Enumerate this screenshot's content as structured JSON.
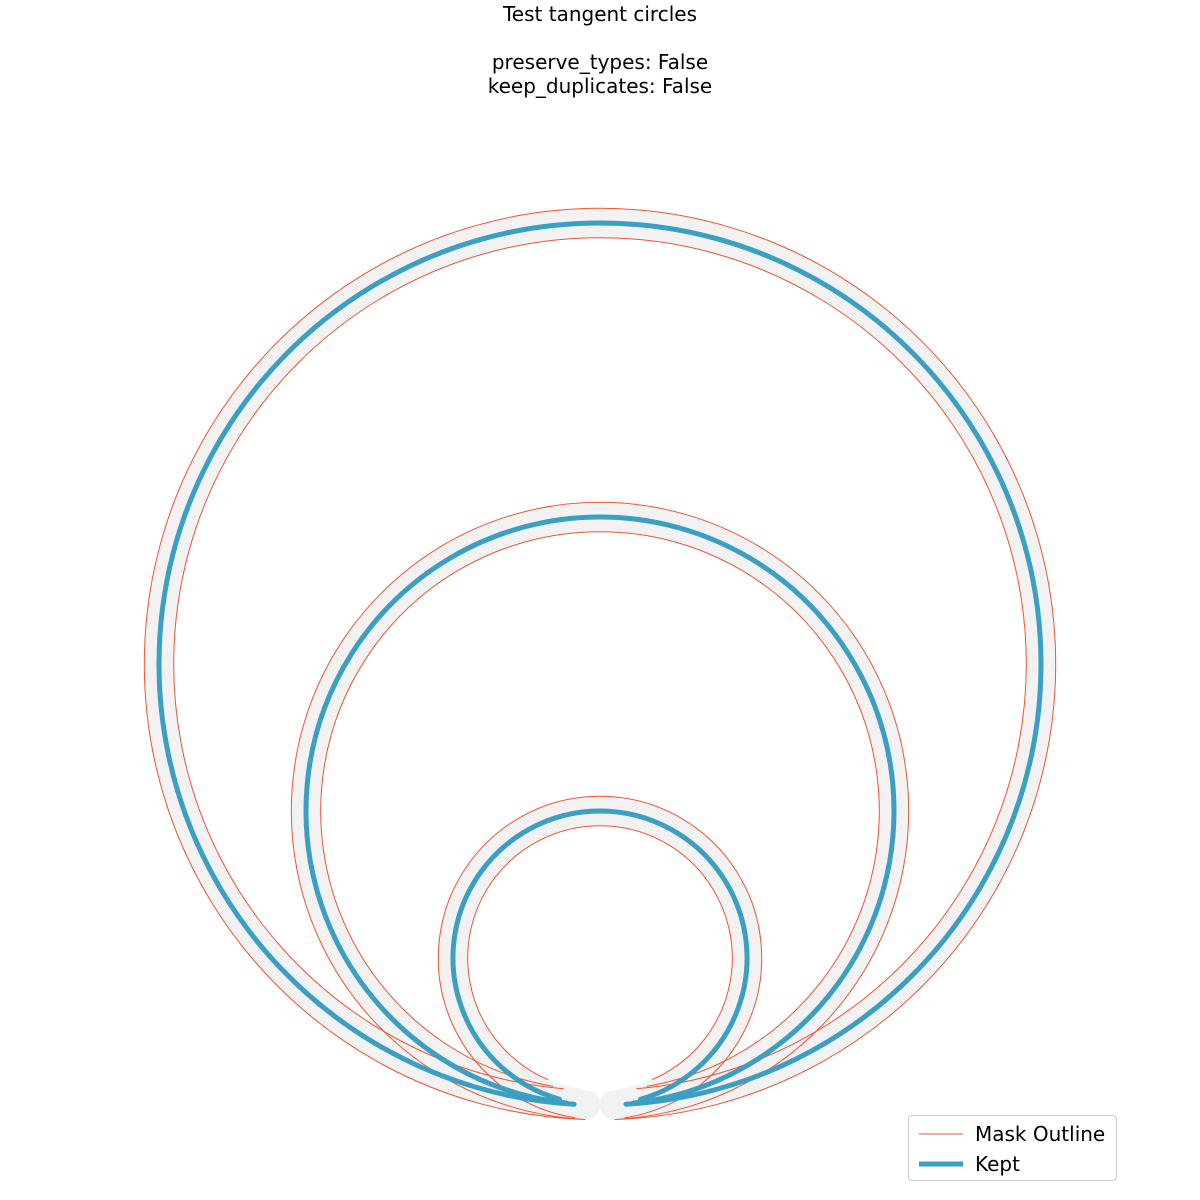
{
  "title": {
    "line1": "Test tangent circles",
    "line2": "preserve_types: False",
    "line3": "keep_duplicates: False"
  },
  "legend": {
    "mask_label": "Mask Outline",
    "kept_label": "Kept"
  },
  "colors": {
    "mask": "#ee5533",
    "kept": "#3a9fc2",
    "halo": "#f2f2f2"
  },
  "chart_data": {
    "type": "line",
    "shapes": [
      {
        "kind": "circle",
        "cx": 0,
        "cy": 0,
        "r": 3
      },
      {
        "kind": "circle",
        "cx": 0,
        "cy": -1,
        "r": 2
      },
      {
        "kind": "circle",
        "cx": 0,
        "cy": -2,
        "r": 1
      }
    ],
    "tangent_point": [
      0,
      -3
    ],
    "mask_buffer": 0.1,
    "series": [
      {
        "name": "Mask Outline",
        "style": "thin"
      },
      {
        "name": "Kept",
        "style": "thick"
      }
    ]
  }
}
